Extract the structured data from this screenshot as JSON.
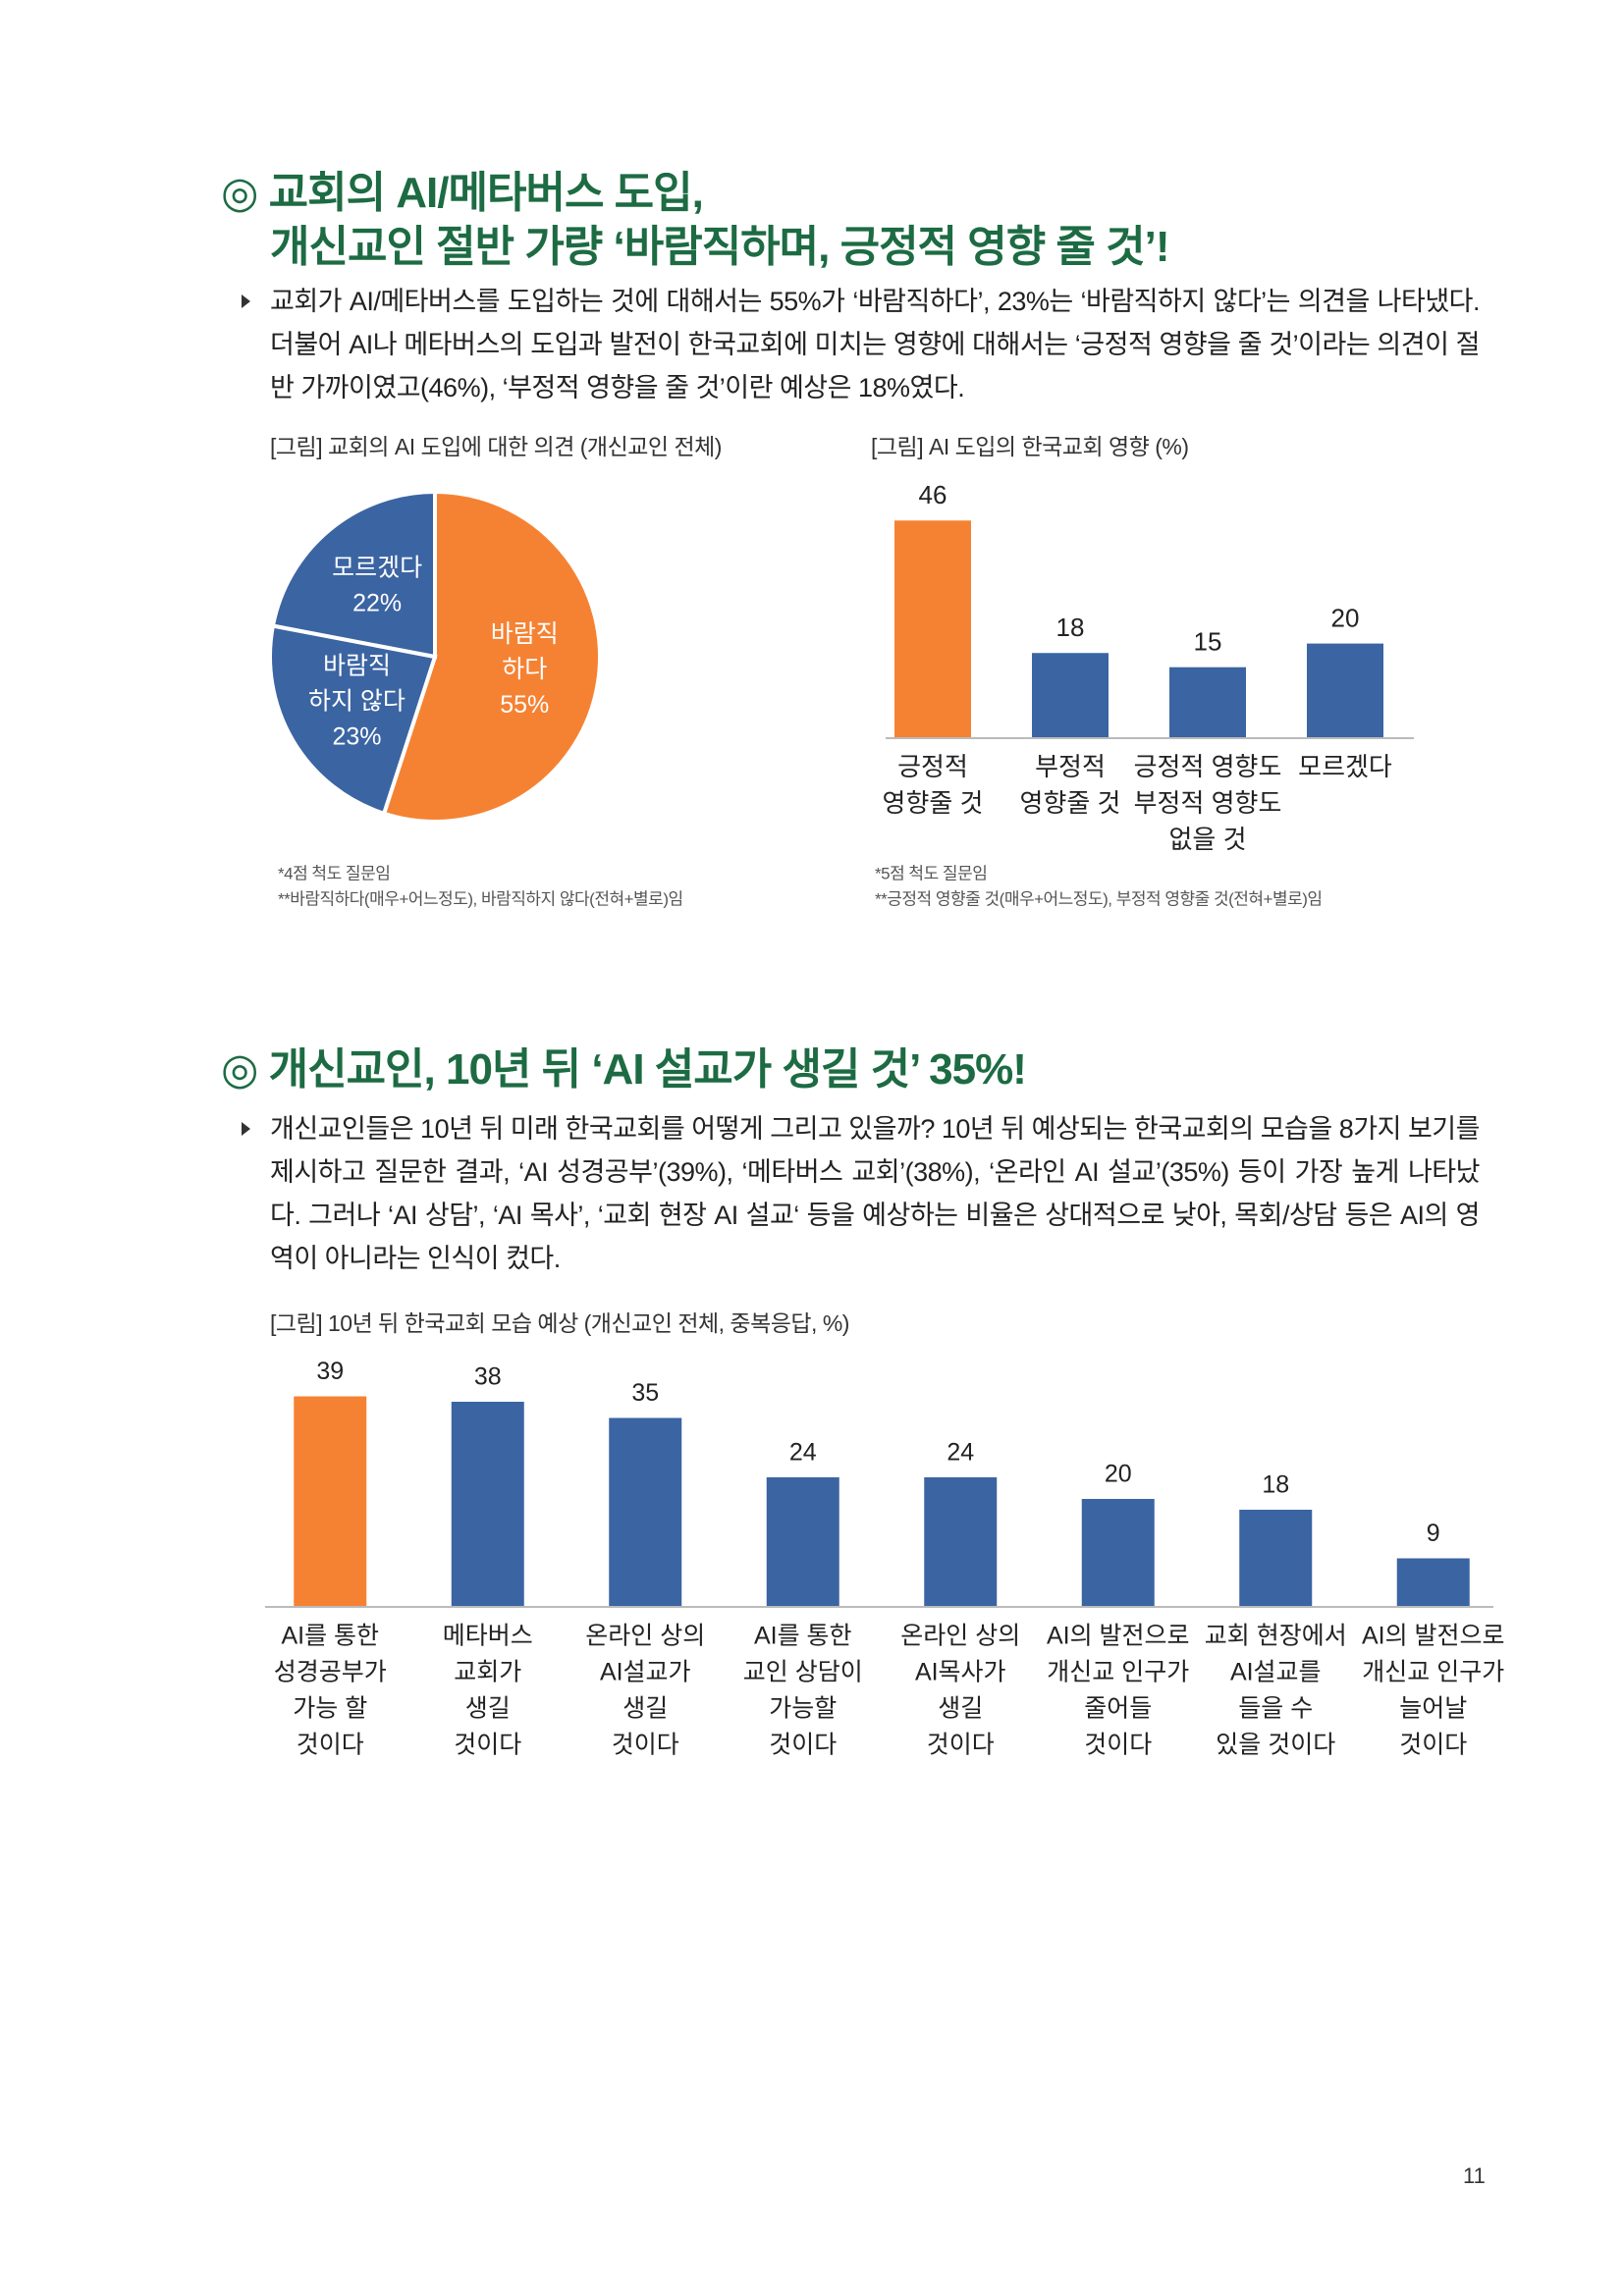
{
  "page": {
    "heading1": [
      "◎ 교회의 AI/메타버스 도입,",
      "개신교인 절반 가량 ‘바람직하며, 긍정적 영향 줄 것’!"
    ],
    "paragraph1": "교회가 AI/메타버스를 도입하는 것에 대해서는 55%가 ‘바람직하다’, 23%는 ‘바람직하지 않다’는 의견을 나타냈다. 더불어 AI나 메타버스의 도입과 발전이 한국교회에 미치는 영향에 대해서는 ‘긍정적 영향을 줄 것’이라는 의견이 절반 가까이였고(46%), ‘부정적 영향을 줄 것’이란 예상은 18%였다.",
    "heading2": "◎ 개신교인, 10년 뒤 ‘AI 설교가 생길 것’ 35%!",
    "paragraph2": "개신교인들은 10년 뒤 미래 한국교회를 어떻게 그리고 있을까? 10년 뒤 예상되는 한국교회의 모습을 8가지 보기를 제시하고 질문한 결과, ‘AI 성경공부’(39%), ‘메타버스 교회’(38%), ‘온라인 AI 설교’(35%) 등이 가장 높게 나타났다. 그러나 ‘AI 상담’, ‘AI 목사’, ‘교회 현장 AI 설교‘ 등을 예상하는 비율은 상대적으로 낮아, 목회/상담 등은 AI의 영역이 아니라는 인식이 컸다.",
    "page_number": "11"
  },
  "chart_data": [
    {
      "type": "pie",
      "title": "[그림] 교회의 AI 도입에 대한 의견 (개신교인 전체)",
      "categories": [
        [
          "바람직",
          "하다"
        ],
        [
          "바람직",
          "하지 않다"
        ],
        [
          "모르겠다"
        ]
      ],
      "values": [
        55,
        23,
        22
      ],
      "value_labels": [
        "55%",
        "23%",
        "22%"
      ],
      "colors": [
        "#f58233",
        "#3b64a2",
        "#3b64a2"
      ],
      "notes": [
        "*4점 척도 질문임",
        "**바람직하다(매우+어느정도), 바람직하지 않다(전혀+별로)임"
      ]
    },
    {
      "type": "bar",
      "title": "[그림] AI 도입의 한국교회 영향 (%)",
      "categories": [
        [
          "긍정적",
          "영향줄 것"
        ],
        [
          "부정적",
          "영향줄 것"
        ],
        [
          "긍정적 영향도",
          "부정적 영향도",
          "없을 것"
        ],
        [
          "모르겠다"
        ]
      ],
      "values": [
        46,
        18,
        15,
        20
      ],
      "colors": [
        "#f58233",
        "#3b64a2",
        "#3b64a2",
        "#3b64a2"
      ],
      "ylim": [
        0,
        50
      ],
      "notes": [
        "*5점 척도 질문임",
        "**긍정적 영향줄 것(매우+어느정도), 부정적 영향줄 것(전혀+별로)임"
      ]
    },
    {
      "type": "bar",
      "title": "[그림] 10년 뒤 한국교회 모습 예상 (개신교인 전체, 중복응답, %)",
      "categories": [
        [
          "AI를 통한",
          "성경공부가",
          "가능 할",
          "것이다"
        ],
        [
          "메타버스",
          "교회가",
          "생길",
          "것이다"
        ],
        [
          "온라인 상의",
          "AI설교가",
          "생길",
          "것이다"
        ],
        [
          "AI를 통한",
          "교인 상담이",
          "가능할",
          "것이다"
        ],
        [
          "온라인 상의",
          "AI목사가",
          "생길",
          "것이다"
        ],
        [
          "AI의 발전으로",
          "개신교 인구가",
          "줄어들",
          "것이다"
        ],
        [
          "교회 현장에서",
          "AI설교를",
          "들을 수",
          "있을 것이다"
        ],
        [
          "AI의 발전으로",
          "개신교 인구가",
          "늘어날",
          "것이다"
        ]
      ],
      "values": [
        39,
        38,
        35,
        24,
        24,
        20,
        18,
        9
      ],
      "colors": [
        "#f58233",
        "#3b64a2",
        "#3b64a2",
        "#3b64a2",
        "#3b64a2",
        "#3b64a2",
        "#3b64a2",
        "#3b64a2"
      ],
      "ylim": [
        0,
        40
      ]
    }
  ]
}
